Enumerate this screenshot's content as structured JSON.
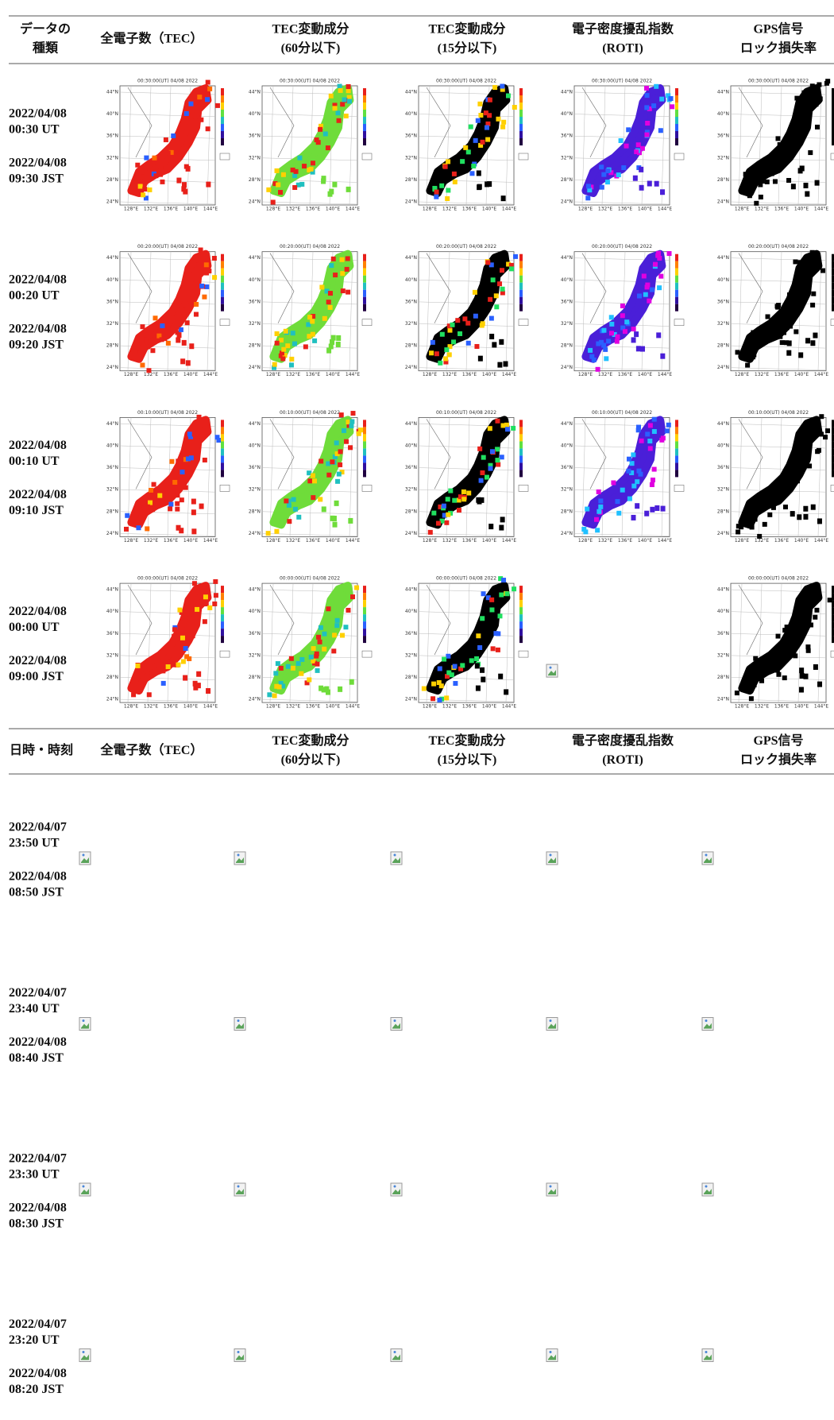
{
  "header": {
    "cols": [
      [
        "データの",
        "種類"
      ],
      [
        "全電子数（TEC）"
      ],
      [
        "TEC変動成分",
        "(60分以下)"
      ],
      [
        "TEC変動成分",
        "(15分以下)"
      ],
      [
        "電子密度擾乱指数",
        "(ROTI)"
      ],
      [
        "GPS信号",
        "ロック損失率"
      ]
    ]
  },
  "header2": {
    "cols": [
      [
        "日時・時刻"
      ],
      [
        "全電子数（TEC）"
      ],
      [
        "TEC変動成分",
        "(60分以下)"
      ],
      [
        "TEC変動成分",
        "(15分以下)"
      ],
      [
        "電子密度擾乱指数",
        "(ROTI)"
      ],
      [
        "GPS信号",
        "ロック損失率"
      ]
    ]
  },
  "map_lat_labels": [
    "44°N",
    "40°N",
    "36°N",
    "32°N",
    "28°N",
    "24°N"
  ],
  "map_lon_labels": [
    "128°E",
    "132°E",
    "136°E",
    "140°E",
    "144°E"
  ],
  "rows": [
    {
      "date_ut": "2022/04/08",
      "time_ut": "00:30 UT",
      "date_jst": "2022/04/08",
      "time_jst": "09:30 JST",
      "maps": [
        "00:30:00(UT) 04/08 2022",
        "00:30:00(UT) 04/08 2022",
        "00:30:00(UT) 04/08 2022",
        "00:30:00(UT) 04/08 2022",
        "00:30:00(UT) 04/08 2022"
      ]
    },
    {
      "date_ut": "2022/04/08",
      "time_ut": "00:20 UT",
      "date_jst": "2022/04/08",
      "time_jst": "09:20 JST",
      "maps": [
        "00:20:00(UT) 04/08 2022",
        "00:20:00(UT) 04/08 2022",
        "00:20:00(UT) 04/08 2022",
        "00:20:00(UT) 04/08 2022",
        "00:20:00(UT) 04/08 2022"
      ]
    },
    {
      "date_ut": "2022/04/08",
      "time_ut": "00:10 UT",
      "date_jst": "2022/04/08",
      "time_jst": "09:10 JST",
      "maps": [
        "00:10:00(UT) 04/08 2022",
        "00:10:00(UT) 04/08 2022",
        "00:10:00(UT) 04/08 2022",
        "00:10:00(UT) 04/08 2022",
        "00:10:00(UT) 04/08 2022"
      ]
    },
    {
      "date_ut": "2022/04/08",
      "time_ut": "00:00 UT",
      "date_jst": "2022/04/08",
      "time_jst": "09:00 JST",
      "maps": [
        "00:00:00(UT) 04/08 2022",
        "00:00:00(UT) 04/08 2022",
        "00:00:00(UT) 04/08 2022",
        null,
        "00:00:00(UT) 04/08 2022"
      ]
    }
  ],
  "rows2": [
    {
      "date_ut": "2022/04/07",
      "time_ut": "23:50 UT",
      "date_jst": "2022/04/08",
      "time_jst": "08:50 JST"
    },
    {
      "date_ut": "2022/04/07",
      "time_ut": "23:40 UT",
      "date_jst": "2022/04/08",
      "time_jst": "08:40 JST"
    },
    {
      "date_ut": "2022/04/07",
      "time_ut": "23:30 UT",
      "date_jst": "2022/04/08",
      "time_jst": "08:30 JST"
    },
    {
      "date_ut": "2022/04/07",
      "time_ut": "23:20 UT",
      "date_jst": "2022/04/08",
      "time_jst": "08:20 JST"
    }
  ]
}
